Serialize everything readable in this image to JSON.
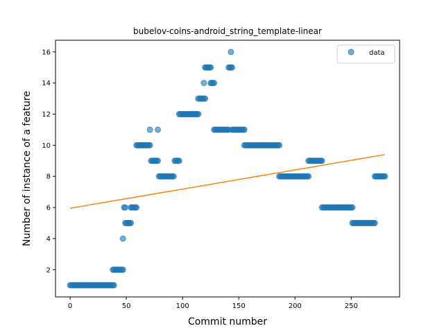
{
  "chart_data": {
    "type": "scatter",
    "title": "bubelov-coins-android_string_template-linear",
    "xlabel": "Commit number",
    "ylabel": "Number of instance of a feature",
    "xlim": [
      -13,
      293
    ],
    "ylim": [
      0.25,
      16.75
    ],
    "xticks": [
      0,
      50,
      100,
      150,
      200,
      250
    ],
    "yticks": [
      2,
      4,
      6,
      8,
      10,
      12,
      14,
      16
    ],
    "grid": false,
    "legend_placement": "top-right",
    "colors": {
      "data": "#1f77b4",
      "fit": "#ff7f0e"
    },
    "series": [
      {
        "name": "data",
        "kind": "scatter",
        "segments": [
          {
            "x_start": 0,
            "x_end": 39,
            "y": 1
          },
          {
            "x_start": 38,
            "x_end": 47,
            "y": 2
          },
          {
            "x_start": 47,
            "x_end": 47,
            "y": 4
          },
          {
            "x_start": 48,
            "x_end": 49,
            "y": 6
          },
          {
            "x_start": 49,
            "x_end": 54,
            "y": 5
          },
          {
            "x_start": 54,
            "x_end": 59,
            "y": 6
          },
          {
            "x_start": 59,
            "x_end": 71,
            "y": 10
          },
          {
            "x_start": 71,
            "x_end": 71,
            "y": 11
          },
          {
            "x_start": 72,
            "x_end": 78,
            "y": 9
          },
          {
            "x_start": 78,
            "x_end": 78,
            "y": 11
          },
          {
            "x_start": 79,
            "x_end": 92,
            "y": 8
          },
          {
            "x_start": 93,
            "x_end": 97,
            "y": 9
          },
          {
            "x_start": 97,
            "x_end": 114,
            "y": 12
          },
          {
            "x_start": 114,
            "x_end": 120,
            "y": 13
          },
          {
            "x_start": 119,
            "x_end": 119,
            "y": 14
          },
          {
            "x_start": 120,
            "x_end": 125,
            "y": 15
          },
          {
            "x_start": 125,
            "x_end": 128,
            "y": 14
          },
          {
            "x_start": 128,
            "x_end": 141,
            "y": 11
          },
          {
            "x_start": 141,
            "x_end": 144,
            "y": 15
          },
          {
            "x_start": 143,
            "x_end": 143,
            "y": 16
          },
          {
            "x_start": 144,
            "x_end": 155,
            "y": 11
          },
          {
            "x_start": 155,
            "x_end": 186,
            "y": 10
          },
          {
            "x_start": 186,
            "x_end": 212,
            "y": 8
          },
          {
            "x_start": 212,
            "x_end": 224,
            "y": 9
          },
          {
            "x_start": 224,
            "x_end": 251,
            "y": 6
          },
          {
            "x_start": 251,
            "x_end": 271,
            "y": 5
          },
          {
            "x_start": 271,
            "x_end": 280,
            "y": 8
          }
        ]
      },
      {
        "name": "",
        "kind": "line",
        "x": [
          0,
          280
        ],
        "y": [
          5.95,
          9.4
        ]
      }
    ]
  }
}
